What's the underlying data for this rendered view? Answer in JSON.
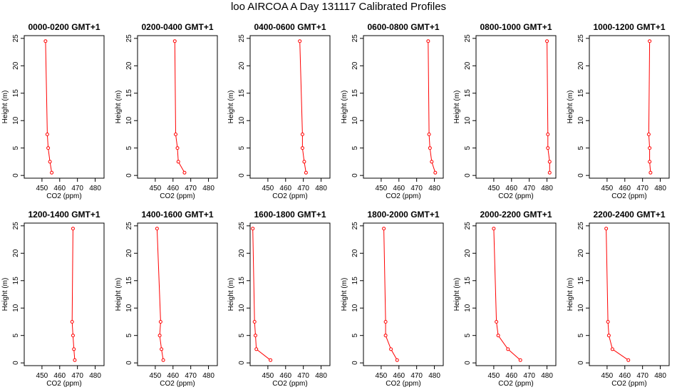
{
  "title": "loo AIRCOA A  Day 131117  Calibrated Profiles",
  "colors": {
    "line": "#ff0000",
    "axis": "#000000",
    "background": "#ffffff"
  },
  "chart_data": [
    {
      "type": "line",
      "title": "0000-0200 GMT+1",
      "xlabel": "CO2 (ppm)",
      "ylabel": "Height (m)",
      "xlim": [
        440,
        485
      ],
      "ylim": [
        -0.5,
        25.5
      ],
      "xticks": [
        450,
        460,
        470,
        480
      ],
      "yticks": [
        0,
        5,
        10,
        15,
        20,
        25
      ],
      "grid": false,
      "x": [
        452,
        453,
        453.5,
        454.5,
        455.5
      ],
      "y": [
        24.5,
        7.5,
        5,
        2.5,
        0.5
      ]
    },
    {
      "type": "line",
      "title": "0200-0400 GMT+1",
      "xlabel": "CO2 (ppm)",
      "ylabel": "Height (m)",
      "xlim": [
        440,
        485
      ],
      "ylim": [
        -0.5,
        25.5
      ],
      "xticks": [
        450,
        460,
        470,
        480
      ],
      "yticks": [
        0,
        5,
        10,
        15,
        20,
        25
      ],
      "grid": false,
      "x": [
        461,
        461.5,
        462.5,
        463,
        466.5
      ],
      "y": [
        24.5,
        7.5,
        5,
        2.5,
        0.5
      ]
    },
    {
      "type": "line",
      "title": "0400-0600 GMT+1",
      "xlabel": "CO2 (ppm)",
      "ylabel": "Height (m)",
      "xlim": [
        440,
        485
      ],
      "ylim": [
        -0.5,
        25.5
      ],
      "xticks": [
        450,
        460,
        470,
        480
      ],
      "yticks": [
        0,
        5,
        10,
        15,
        20,
        25
      ],
      "grid": false,
      "x": [
        468,
        469.5,
        469.5,
        470.5,
        471.5
      ],
      "y": [
        24.5,
        7.5,
        5,
        2.5,
        0.5
      ]
    },
    {
      "type": "line",
      "title": "0600-0800 GMT+1",
      "xlabel": "CO2 (ppm)",
      "ylabel": "Height (m)",
      "xlim": [
        440,
        485
      ],
      "ylim": [
        -0.5,
        25.5
      ],
      "xticks": [
        450,
        460,
        470,
        480
      ],
      "yticks": [
        0,
        5,
        10,
        15,
        20,
        25
      ],
      "grid": false,
      "x": [
        476.5,
        477,
        477.5,
        478.5,
        480.5
      ],
      "y": [
        24.5,
        7.5,
        5,
        2.5,
        0.5
      ]
    },
    {
      "type": "line",
      "title": "0800-1000 GMT+1",
      "xlabel": "CO2 (ppm)",
      "ylabel": "Height (m)",
      "xlim": [
        440,
        485
      ],
      "ylim": [
        -0.5,
        25.5
      ],
      "xticks": [
        450,
        460,
        470,
        480
      ],
      "yticks": [
        0,
        5,
        10,
        15,
        20,
        25
      ],
      "grid": false,
      "x": [
        480,
        480.5,
        480.5,
        481.5,
        481.5
      ],
      "y": [
        24.5,
        7.5,
        5,
        2.5,
        0.5
      ]
    },
    {
      "type": "line",
      "title": "1000-1200 GMT+1",
      "xlabel": "CO2 (ppm)",
      "ylabel": "Height (m)",
      "xlim": [
        440,
        485
      ],
      "ylim": [
        -0.5,
        25.5
      ],
      "xticks": [
        450,
        460,
        470,
        480
      ],
      "yticks": [
        0,
        5,
        10,
        15,
        20,
        25
      ],
      "grid": false,
      "x": [
        474,
        473.5,
        474,
        474,
        474.5
      ],
      "y": [
        24.5,
        7.5,
        5,
        2.5,
        0.5
      ]
    },
    {
      "type": "line",
      "title": "1200-1400 GMT+1",
      "xlabel": "CO2 (ppm)",
      "ylabel": "Height (m)",
      "xlim": [
        440,
        485
      ],
      "ylim": [
        -0.5,
        25.5
      ],
      "xticks": [
        450,
        460,
        470,
        480
      ],
      "yticks": [
        0,
        5,
        10,
        15,
        20,
        25
      ],
      "grid": false,
      "x": [
        467.5,
        467,
        467.5,
        468,
        468.5
      ],
      "y": [
        24.5,
        7.5,
        5,
        2.5,
        0.5
      ]
    },
    {
      "type": "line",
      "title": "1400-1600 GMT+1",
      "xlabel": "CO2 (ppm)",
      "ylabel": "Height (m)",
      "xlim": [
        440,
        485
      ],
      "ylim": [
        -0.5,
        25.5
      ],
      "xticks": [
        450,
        460,
        470,
        480
      ],
      "yticks": [
        0,
        5,
        10,
        15,
        20,
        25
      ],
      "grid": false,
      "x": [
        451,
        453,
        452.5,
        453.5,
        454.5
      ],
      "y": [
        24.5,
        7.5,
        5,
        2.5,
        0.5
      ]
    },
    {
      "type": "line",
      "title": "1600-1800 GMT+1",
      "xlabel": "CO2 (ppm)",
      "ylabel": "Height (m)",
      "xlim": [
        440,
        485
      ],
      "ylim": [
        -0.5,
        25.5
      ],
      "xticks": [
        450,
        460,
        470,
        480
      ],
      "yticks": [
        0,
        5,
        10,
        15,
        20,
        25
      ],
      "grid": false,
      "x": [
        441.5,
        442.5,
        443,
        443.5,
        451.5
      ],
      "y": [
        24.5,
        7.5,
        5,
        2.5,
        0.5
      ]
    },
    {
      "type": "line",
      "title": "1800-2000 GMT+1",
      "xlabel": "CO2 (ppm)",
      "ylabel": "Height (m)",
      "xlim": [
        440,
        485
      ],
      "ylim": [
        -0.5,
        25.5
      ],
      "xticks": [
        450,
        460,
        470,
        480
      ],
      "yticks": [
        0,
        5,
        10,
        15,
        20,
        25
      ],
      "grid": false,
      "x": [
        451.5,
        452.5,
        452.5,
        455.5,
        459
      ],
      "y": [
        24.5,
        7.5,
        5,
        2.5,
        0.5
      ]
    },
    {
      "type": "line",
      "title": "2000-2200 GMT+1",
      "xlabel": "CO2 (ppm)",
      "ylabel": "Height (m)",
      "xlim": [
        440,
        485
      ],
      "ylim": [
        -0.5,
        25.5
      ],
      "xticks": [
        450,
        460,
        470,
        480
      ],
      "yticks": [
        0,
        5,
        10,
        15,
        20,
        25
      ],
      "grid": false,
      "x": [
        450,
        451.5,
        452.5,
        458,
        465
      ],
      "y": [
        24.5,
        7.5,
        5,
        2.5,
        0.5
      ]
    },
    {
      "type": "line",
      "title": "2200-2400 GMT+1",
      "xlabel": "CO2 (ppm)",
      "ylabel": "Height (m)",
      "xlim": [
        440,
        485
      ],
      "ylim": [
        -0.5,
        25.5
      ],
      "xticks": [
        450,
        460,
        470,
        480
      ],
      "yticks": [
        0,
        5,
        10,
        15,
        20,
        25
      ],
      "grid": false,
      "x": [
        449.5,
        450.5,
        451,
        453,
        462
      ],
      "y": [
        24.5,
        7.5,
        5,
        2.5,
        0.5
      ]
    }
  ]
}
